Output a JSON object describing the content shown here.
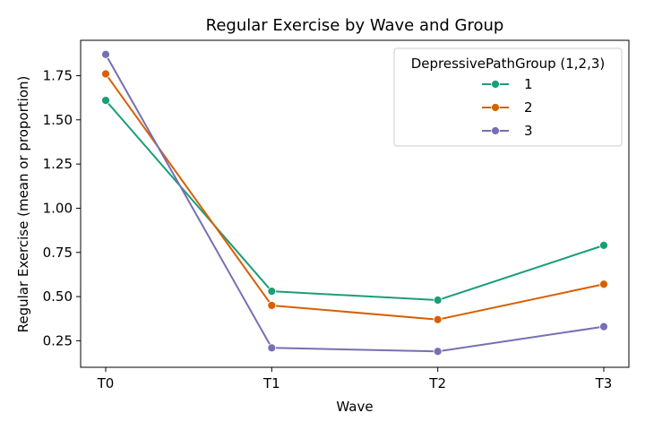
{
  "chart_data": {
    "type": "line",
    "title": "Regular Exercise by Wave and Group",
    "xlabel": "Wave",
    "ylabel": "Regular Exercise (mean or proportion)",
    "categories": [
      "T0",
      "T1",
      "T2",
      "T3"
    ],
    "yticks": [
      0.25,
      0.5,
      0.75,
      1.0,
      1.25,
      1.5,
      1.75
    ],
    "ytick_labels": [
      "0.25",
      "0.50",
      "0.75",
      "1.00",
      "1.25",
      "1.50",
      "1.75"
    ],
    "ylim": [
      0.1,
      1.95
    ],
    "grid": false,
    "legend": {
      "title": "DepressivePathGroup (1,2,3)",
      "placement": "top-right"
    },
    "series": [
      {
        "name": "1",
        "color": "#1b9e77",
        "values": [
          1.61,
          0.53,
          0.48,
          0.79
        ]
      },
      {
        "name": "2",
        "color": "#d95f02",
        "values": [
          1.76,
          0.45,
          0.37,
          0.57
        ]
      },
      {
        "name": "3",
        "color": "#7570b3",
        "values": [
          1.87,
          0.21,
          0.19,
          0.33
        ]
      }
    ]
  }
}
